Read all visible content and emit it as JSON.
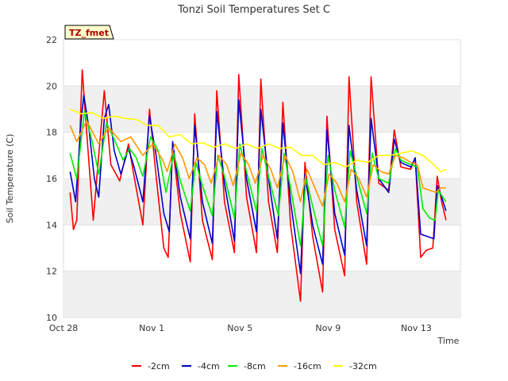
{
  "chart_data": {
    "type": "line",
    "title": "Tonzi Soil Temperatures Set C",
    "xlabel": "Time",
    "ylabel": "Soil Temperature (C)",
    "badge": "TZ_fmet",
    "xlim": [
      0,
      18
    ],
    "ylim": [
      10,
      22
    ],
    "x_ticks": [
      {
        "x": 0,
        "label": "Oct 28"
      },
      {
        "x": 4,
        "label": "Nov 1"
      },
      {
        "x": 8,
        "label": "Nov 5"
      },
      {
        "x": 12,
        "label": "Nov 9"
      },
      {
        "x": 16,
        "label": "Nov 13"
      }
    ],
    "y_ticks": [
      10,
      12,
      14,
      16,
      18,
      20,
      22
    ],
    "grid": true,
    "legend_position": "bottom",
    "series": [
      {
        "name": "-2cm",
        "color": "#ff0000",
        "points": [
          [
            0.3,
            15.4
          ],
          [
            0.45,
            13.8
          ],
          [
            0.6,
            14.2
          ],
          [
            0.85,
            20.7
          ],
          [
            1.05,
            18.0
          ],
          [
            1.35,
            14.2
          ],
          [
            1.55,
            16.5
          ],
          [
            1.85,
            19.8
          ],
          [
            2.15,
            16.6
          ],
          [
            2.55,
            15.9
          ],
          [
            2.95,
            17.5
          ],
          [
            3.2,
            16.1
          ],
          [
            3.6,
            14.0
          ],
          [
            3.9,
            19.0
          ],
          [
            4.2,
            16.1
          ],
          [
            4.55,
            13.0
          ],
          [
            4.75,
            12.6
          ],
          [
            4.95,
            17.4
          ],
          [
            5.3,
            14.5
          ],
          [
            5.75,
            12.4
          ],
          [
            5.95,
            18.8
          ],
          [
            6.3,
            14.2
          ],
          [
            6.75,
            12.5
          ],
          [
            6.95,
            19.8
          ],
          [
            7.3,
            15.0
          ],
          [
            7.75,
            12.8
          ],
          [
            7.95,
            20.5
          ],
          [
            8.3,
            15.2
          ],
          [
            8.75,
            12.8
          ],
          [
            8.95,
            20.3
          ],
          [
            9.3,
            15.0
          ],
          [
            9.7,
            12.8
          ],
          [
            9.95,
            19.3
          ],
          [
            10.3,
            14.0
          ],
          [
            10.75,
            10.7
          ],
          [
            10.95,
            16.7
          ],
          [
            11.3,
            13.5
          ],
          [
            11.75,
            11.1
          ],
          [
            11.95,
            18.7
          ],
          [
            12.3,
            13.8
          ],
          [
            12.75,
            11.8
          ],
          [
            12.95,
            20.4
          ],
          [
            13.3,
            15.0
          ],
          [
            13.75,
            12.3
          ],
          [
            13.95,
            20.4
          ],
          [
            14.3,
            15.8
          ],
          [
            14.75,
            15.5
          ],
          [
            15.0,
            18.1
          ],
          [
            15.3,
            16.5
          ],
          [
            15.75,
            16.4
          ],
          [
            15.95,
            16.9
          ],
          [
            16.2,
            12.6
          ],
          [
            16.45,
            12.9
          ],
          [
            16.75,
            13.0
          ],
          [
            16.95,
            16.1
          ],
          [
            17.15,
            15.0
          ],
          [
            17.35,
            14.2
          ]
        ]
      },
      {
        "name": "-4cm",
        "color": "#0000cc",
        "points": [
          [
            0.3,
            16.3
          ],
          [
            0.55,
            15.0
          ],
          [
            0.8,
            18.5
          ],
          [
            0.92,
            19.6
          ],
          [
            1.15,
            18.2
          ],
          [
            1.4,
            16.0
          ],
          [
            1.6,
            15.2
          ],
          [
            1.85,
            18.6
          ],
          [
            2.05,
            19.2
          ],
          [
            2.3,
            17.2
          ],
          [
            2.6,
            16.2
          ],
          [
            2.95,
            17.3
          ],
          [
            3.2,
            16.5
          ],
          [
            3.6,
            15.0
          ],
          [
            3.9,
            18.7
          ],
          [
            4.2,
            17.0
          ],
          [
            4.55,
            14.5
          ],
          [
            4.8,
            13.7
          ],
          [
            4.95,
            17.6
          ],
          [
            5.3,
            15.2
          ],
          [
            5.75,
            13.4
          ],
          [
            5.95,
            18.3
          ],
          [
            6.3,
            15.0
          ],
          [
            6.75,
            13.2
          ],
          [
            6.95,
            18.9
          ],
          [
            7.3,
            15.8
          ],
          [
            7.75,
            13.3
          ],
          [
            7.95,
            19.4
          ],
          [
            8.3,
            16.0
          ],
          [
            8.75,
            13.7
          ],
          [
            8.95,
            19.0
          ],
          [
            9.3,
            16.0
          ],
          [
            9.7,
            13.4
          ],
          [
            9.95,
            18.4
          ],
          [
            10.3,
            15.0
          ],
          [
            10.75,
            11.9
          ],
          [
            10.95,
            16.2
          ],
          [
            11.3,
            14.0
          ],
          [
            11.75,
            12.3
          ],
          [
            11.95,
            18.1
          ],
          [
            12.3,
            14.5
          ],
          [
            12.75,
            12.7
          ],
          [
            12.95,
            18.3
          ],
          [
            13.3,
            15.5
          ],
          [
            13.75,
            13.1
          ],
          [
            13.95,
            18.6
          ],
          [
            14.3,
            16.0
          ],
          [
            14.75,
            15.4
          ],
          [
            15.0,
            17.7
          ],
          [
            15.3,
            16.7
          ],
          [
            15.75,
            16.5
          ],
          [
            15.95,
            16.9
          ],
          [
            16.2,
            13.6
          ],
          [
            16.5,
            13.5
          ],
          [
            16.8,
            13.4
          ],
          [
            16.95,
            15.7
          ],
          [
            17.15,
            15.2
          ],
          [
            17.35,
            14.6
          ]
        ]
      },
      {
        "name": "-8cm",
        "color": "#00ee00",
        "points": [
          [
            0.3,
            17.1
          ],
          [
            0.6,
            16.0
          ],
          [
            0.95,
            18.9
          ],
          [
            1.3,
            17.6
          ],
          [
            1.6,
            16.2
          ],
          [
            1.95,
            18.4
          ],
          [
            2.3,
            17.7
          ],
          [
            2.7,
            16.8
          ],
          [
            3.0,
            17.3
          ],
          [
            3.3,
            16.9
          ],
          [
            3.6,
            16.1
          ],
          [
            3.95,
            17.8
          ],
          [
            4.3,
            17.2
          ],
          [
            4.65,
            15.4
          ],
          [
            5.0,
            17.1
          ],
          [
            5.3,
            15.9
          ],
          [
            5.75,
            14.6
          ],
          [
            6.0,
            16.7
          ],
          [
            6.3,
            15.7
          ],
          [
            6.75,
            14.4
          ],
          [
            7.0,
            17.0
          ],
          [
            7.3,
            16.1
          ],
          [
            7.75,
            14.3
          ],
          [
            8.0,
            17.5
          ],
          [
            8.3,
            16.3
          ],
          [
            8.75,
            14.6
          ],
          [
            9.0,
            17.3
          ],
          [
            9.3,
            16.1
          ],
          [
            9.75,
            14.4
          ],
          [
            10.0,
            17.1
          ],
          [
            10.3,
            15.6
          ],
          [
            10.75,
            13.1
          ],
          [
            11.0,
            16.0
          ],
          [
            11.3,
            14.8
          ],
          [
            11.75,
            13.1
          ],
          [
            12.0,
            17.0
          ],
          [
            12.3,
            15.5
          ],
          [
            12.75,
            13.9
          ],
          [
            13.0,
            17.2
          ],
          [
            13.3,
            16.1
          ],
          [
            13.75,
            14.5
          ],
          [
            14.0,
            17.1
          ],
          [
            14.3,
            16.0
          ],
          [
            14.75,
            15.8
          ],
          [
            15.05,
            17.3
          ],
          [
            15.3,
            16.8
          ],
          [
            15.75,
            16.6
          ],
          [
            16.05,
            16.5
          ],
          [
            16.3,
            14.7
          ],
          [
            16.6,
            14.3
          ],
          [
            16.85,
            14.2
          ],
          [
            17.0,
            15.5
          ],
          [
            17.2,
            15.2
          ],
          [
            17.35,
            15.0
          ]
        ]
      },
      {
        "name": "-16cm",
        "color": "#ff9900",
        "points": [
          [
            0.3,
            18.3
          ],
          [
            0.6,
            17.6
          ],
          [
            1.05,
            18.5
          ],
          [
            1.6,
            17.5
          ],
          [
            2.05,
            18.2
          ],
          [
            2.6,
            17.6
          ],
          [
            3.05,
            17.8
          ],
          [
            3.6,
            17.0
          ],
          [
            4.05,
            17.5
          ],
          [
            4.5,
            16.8
          ],
          [
            4.7,
            16.3
          ],
          [
            5.05,
            17.5
          ],
          [
            5.4,
            16.9
          ],
          [
            5.7,
            16.0
          ],
          [
            6.05,
            16.9
          ],
          [
            6.4,
            16.6
          ],
          [
            6.7,
            15.8
          ],
          [
            7.05,
            17.0
          ],
          [
            7.4,
            16.6
          ],
          [
            7.7,
            15.7
          ],
          [
            8.05,
            17.1
          ],
          [
            8.4,
            16.6
          ],
          [
            8.7,
            15.8
          ],
          [
            9.05,
            17.0
          ],
          [
            9.4,
            16.4
          ],
          [
            9.7,
            15.6
          ],
          [
            10.05,
            17.0
          ],
          [
            10.4,
            16.3
          ],
          [
            10.75,
            15.0
          ],
          [
            11.05,
            16.4
          ],
          [
            11.4,
            15.6
          ],
          [
            11.75,
            14.8
          ],
          [
            12.05,
            16.2
          ],
          [
            12.4,
            15.8
          ],
          [
            12.75,
            15.0
          ],
          [
            13.05,
            16.4
          ],
          [
            13.4,
            16.0
          ],
          [
            13.75,
            15.2
          ],
          [
            14.05,
            16.6
          ],
          [
            14.4,
            16.3
          ],
          [
            14.75,
            16.2
          ],
          [
            15.05,
            17.0
          ],
          [
            15.4,
            16.9
          ],
          [
            15.75,
            16.7
          ],
          [
            16.05,
            16.6
          ],
          [
            16.3,
            15.6
          ],
          [
            16.6,
            15.5
          ],
          [
            16.9,
            15.4
          ],
          [
            17.1,
            15.6
          ],
          [
            17.35,
            15.6
          ]
        ]
      },
      {
        "name": "-32cm",
        "color": "#ffff00",
        "points": [
          [
            0.3,
            19.0
          ],
          [
            0.8,
            18.8
          ],
          [
            1.3,
            18.85
          ],
          [
            1.8,
            18.6
          ],
          [
            2.3,
            18.7
          ],
          [
            2.8,
            18.6
          ],
          [
            3.3,
            18.55
          ],
          [
            3.8,
            18.3
          ],
          [
            4.3,
            18.3
          ],
          [
            4.8,
            17.8
          ],
          [
            5.3,
            17.9
          ],
          [
            5.8,
            17.5
          ],
          [
            6.3,
            17.55
          ],
          [
            6.8,
            17.35
          ],
          [
            7.3,
            17.5
          ],
          [
            7.8,
            17.3
          ],
          [
            8.3,
            17.5
          ],
          [
            8.8,
            17.3
          ],
          [
            9.3,
            17.5
          ],
          [
            9.8,
            17.3
          ],
          [
            10.3,
            17.35
          ],
          [
            10.8,
            17.0
          ],
          [
            11.3,
            17.0
          ],
          [
            11.8,
            16.6
          ],
          [
            12.3,
            16.7
          ],
          [
            12.8,
            16.5
          ],
          [
            13.3,
            16.8
          ],
          [
            13.8,
            16.7
          ],
          [
            14.3,
            17.0
          ],
          [
            14.8,
            17.0
          ],
          [
            15.3,
            17.1
          ],
          [
            15.8,
            17.2
          ],
          [
            16.3,
            17.0
          ],
          [
            16.8,
            16.6
          ],
          [
            17.1,
            16.3
          ],
          [
            17.35,
            16.4
          ]
        ]
      }
    ]
  }
}
